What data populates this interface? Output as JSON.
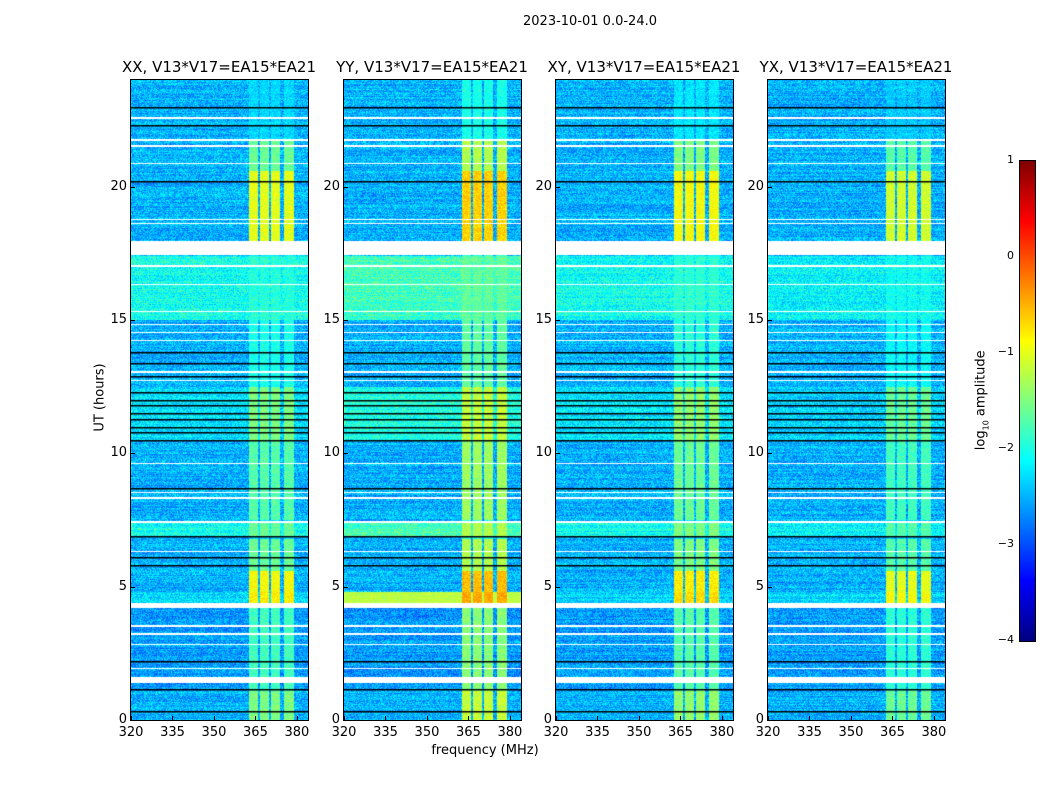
{
  "chart_data": {
    "type": "heatmap",
    "title": "2023-10-01 0.0-24.0",
    "xlabel": "frequency (MHz)",
    "ylabel": "UT (hours)",
    "xlim": [
      320,
      384
    ],
    "ylim": [
      0,
      24
    ],
    "xticks": [
      320,
      335,
      350,
      365,
      380
    ],
    "yticks": [
      0,
      5,
      10,
      15,
      20
    ],
    "panels": [
      {
        "title": "XX, V13*V17=EA15*EA21",
        "gain": 0.0,
        "broadband_boost": 0.0
      },
      {
        "title": "YY, V13*V17=EA15*EA21",
        "gain": 0.35,
        "broadband_boost": 0.25
      },
      {
        "title": "XY, V13*V17=EA15*EA21",
        "gain": 0.1,
        "broadband_boost": 0.0
      },
      {
        "title": "YX, V13*V17=EA15*EA21",
        "gain": -0.1,
        "broadband_boost": -0.1
      }
    ],
    "colorbar": {
      "label": "log10 amplitude",
      "label_main": "log",
      "label_sub": "10",
      "label_rest": " amplitude",
      "colormap": "jet",
      "range": [
        -4,
        1
      ],
      "ticks": [
        "1",
        "0",
        "−1",
        "−2",
        "−3",
        "−4"
      ]
    },
    "rfi_bands_mhz": [
      [
        362.5,
        366.0
      ],
      [
        366.6,
        370.0
      ],
      [
        370.7,
        374.0
      ],
      [
        375.2,
        378.8
      ]
    ],
    "default_level": {
      "bg": -2.5,
      "band": -2.3
    },
    "time_segments": [
      {
        "start": 0.0,
        "end": 1.1,
        "bg": -2.5,
        "band": -1.5
      },
      {
        "start": 1.1,
        "end": 4.2,
        "bg": -2.6,
        "band": -1.8
      },
      {
        "start": 4.4,
        "end": 4.8,
        "bg": -2.3,
        "band": -0.8,
        "broadband": -1.2
      },
      {
        "start": 4.8,
        "end": 5.6,
        "bg": -2.5,
        "band": -0.9
      },
      {
        "start": 5.6,
        "end": 6.8,
        "bg": -2.5,
        "band": -1.6
      },
      {
        "start": 6.9,
        "end": 7.4,
        "bg": -2.05,
        "band": -1.6
      },
      {
        "start": 7.5,
        "end": 10.5,
        "bg": -2.5,
        "band": -1.7
      },
      {
        "start": 10.5,
        "end": 12.5,
        "bg": -2.25,
        "band": -1.5
      },
      {
        "start": 12.5,
        "end": 15.0,
        "bg": -2.5,
        "band": -2.0
      },
      {
        "start": 15.0,
        "end": 17.4,
        "bg": -2.05,
        "band": -2.05
      },
      {
        "start": 17.95,
        "end": 20.6,
        "bg": -2.5,
        "band": -1.0
      },
      {
        "start": 20.6,
        "end": 21.8,
        "bg": -2.5,
        "band": -1.6
      },
      {
        "start": 21.8,
        "end": 24.0,
        "bg": -2.5,
        "band": -2.35
      }
    ],
    "flagged_hours": [
      [
        22.55,
        22.62
      ],
      [
        21.7,
        21.78
      ],
      [
        21.5,
        21.55
      ],
      [
        20.85,
        20.9
      ],
      [
        18.6,
        18.65
      ],
      [
        18.75,
        18.8
      ],
      [
        17.45,
        17.95
      ],
      [
        17.0,
        17.05
      ],
      [
        16.3,
        16.35
      ],
      [
        15.3,
        15.35
      ],
      [
        14.8,
        14.85
      ],
      [
        14.5,
        14.55
      ],
      [
        14.2,
        14.25
      ],
      [
        13.0,
        13.1
      ],
      [
        12.7,
        12.75
      ],
      [
        9.6,
        9.65
      ],
      [
        8.5,
        8.55
      ],
      [
        8.3,
        8.35
      ],
      [
        7.4,
        7.45
      ],
      [
        6.3,
        6.35
      ],
      [
        4.2,
        4.4
      ],
      [
        3.5,
        3.55
      ],
      [
        3.2,
        3.25
      ],
      [
        2.8,
        2.85
      ],
      [
        1.9,
        1.95
      ],
      [
        1.4,
        1.6
      ]
    ],
    "scan_boundaries_hours": [
      23.0,
      22.3,
      20.2,
      13.8,
      13.4,
      12.9,
      12.3,
      12.0,
      11.8,
      11.5,
      11.3,
      11.0,
      10.8,
      10.5,
      8.7,
      6.9,
      6.1,
      5.8,
      2.2,
      1.15,
      0.35
    ]
  }
}
